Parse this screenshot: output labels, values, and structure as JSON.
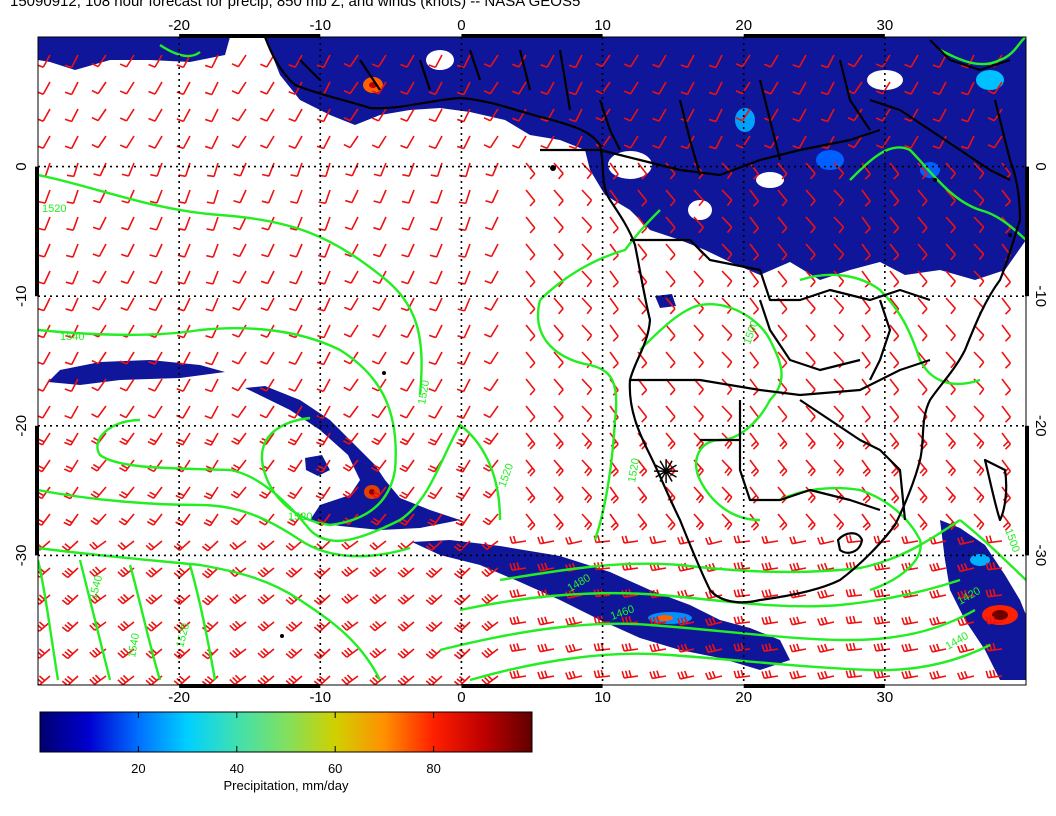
{
  "title": "15090912, 108 hour forecast for precip, 850 mb Z, and winds (knots) -- NASA GEOS5",
  "axes": {
    "lon_ticks": [
      "-20",
      "-10",
      "0",
      "10",
      "20",
      "30"
    ],
    "lat_ticks": [
      "0",
      "-10",
      "-20",
      "-30"
    ],
    "lon_values": [
      -20,
      -10,
      0,
      10,
      20,
      30
    ],
    "lat_values": [
      0,
      -10,
      -20,
      -30
    ],
    "lon_range": [
      -30,
      40
    ],
    "lat_range": [
      -40,
      10
    ]
  },
  "contour_labels": [
    "1520",
    "1540",
    "1520",
    "1520",
    "1520",
    "1540",
    "1540",
    "1520",
    "1500",
    "1480",
    "1460",
    "1500",
    "1420",
    "1440",
    "1520"
  ],
  "colorbar": {
    "label": "Precipitation, mm/day",
    "tick_labels": [
      "20",
      "40",
      "60",
      "80"
    ],
    "tick_values": [
      20,
      40,
      60,
      80
    ],
    "range": [
      0,
      100
    ],
    "colors": [
      "#000070",
      "#0000d0",
      "#0070ff",
      "#00d0ff",
      "#40e0b0",
      "#80e060",
      "#d0d000",
      "#ff9000",
      "#ff2000",
      "#c00000",
      "#600000"
    ]
  },
  "colors": {
    "contour": "#22ee22",
    "wind_barb": "#ee1111",
    "precip_base": "#10169a",
    "coast": "#000000",
    "grid": "#000000"
  },
  "marker": {
    "symbol": "star",
    "lon": 14.5,
    "lat": -23.5
  }
}
